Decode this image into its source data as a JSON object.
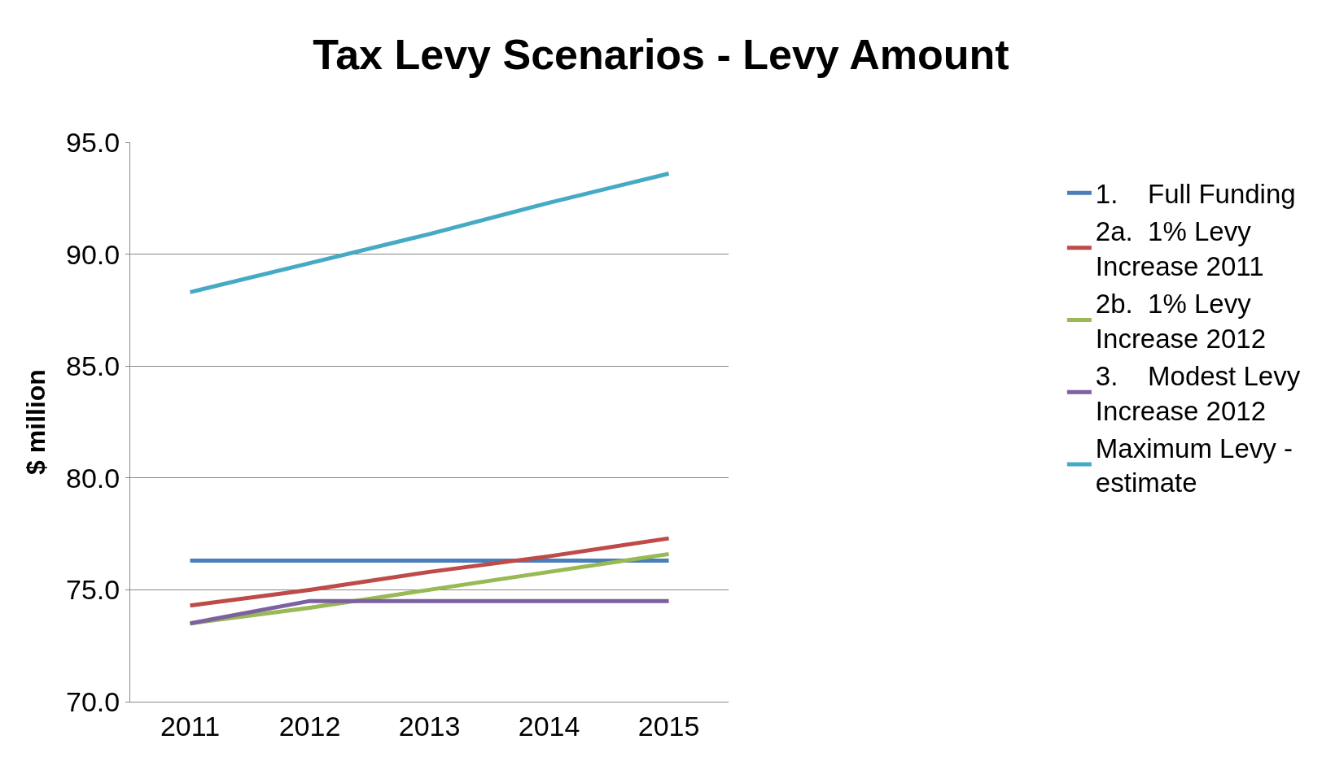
{
  "chart_data": {
    "type": "line",
    "title": "Tax Levy Scenarios - Levy Amount",
    "ylabel": "$ million",
    "categories": [
      "2011",
      "2012",
      "2013",
      "2014",
      "2015"
    ],
    "series": [
      {
        "name": "1.    Full Funding",
        "color": "#4a7ebb",
        "values": [
          76.3,
          76.3,
          76.3,
          76.3,
          76.3
        ]
      },
      {
        "name": "2a.  1% Levy Increase 2011",
        "color": "#be4b48",
        "values": [
          74.3,
          75.0,
          75.8,
          76.5,
          77.3
        ]
      },
      {
        "name": "2b.  1% Levy Increase 2012",
        "color": "#98b954",
        "values": [
          73.5,
          74.2,
          75.0,
          75.8,
          76.6
        ]
      },
      {
        "name": "3.    Modest Levy Increase 2012",
        "color": "#7d60a0",
        "values": [
          73.5,
          74.5,
          74.5,
          74.5,
          74.5
        ]
      },
      {
        "name": "Maximum Levy - estimate",
        "color": "#46aac5",
        "values": [
          88.3,
          89.6,
          90.9,
          92.3,
          93.6
        ]
      }
    ],
    "ylim": [
      70,
      95
    ],
    "yticks": [
      {
        "value": 70,
        "label": "70.0"
      },
      {
        "value": 75,
        "label": "75.0"
      },
      {
        "value": 80,
        "label": "80.0"
      },
      {
        "value": 85,
        "label": "85.0"
      },
      {
        "value": 90,
        "label": "90.0"
      },
      {
        "value": 95,
        "label": "95.0"
      }
    ],
    "grid": "y",
    "legend": "right",
    "marker": "none",
    "line_style": "solid"
  }
}
